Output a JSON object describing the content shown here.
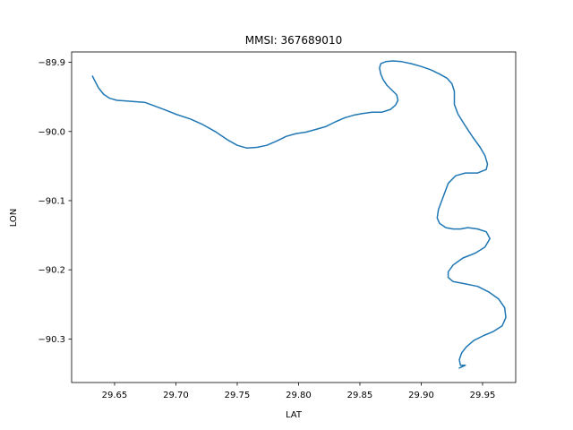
{
  "chart_data": {
    "type": "line",
    "title": "MMSI: 367689010",
    "xlabel": "LAT",
    "ylabel": "LON",
    "xlim": [
      29.615,
      29.977
    ],
    "ylim": [
      -90.363,
      -89.885
    ],
    "xticks": [
      29.65,
      29.7,
      29.75,
      29.8,
      29.85,
      29.9,
      29.95
    ],
    "xtick_labels": [
      "29.65",
      "29.70",
      "29.75",
      "29.80",
      "29.85",
      "29.90",
      "29.95"
    ],
    "yticks": [
      -89.9,
      -90.0,
      -90.1,
      -90.2,
      -90.3
    ],
    "ytick_labels": [
      "−89.9",
      "−90.0",
      "−90.1",
      "−90.2",
      "−90.3"
    ],
    "grid": false,
    "color": "#1f77b4",
    "series": [
      {
        "x": [
          29.632,
          29.634,
          29.637,
          29.641,
          29.646,
          29.652,
          29.66,
          29.675,
          29.69,
          29.7,
          29.712,
          29.722,
          29.732,
          29.742,
          29.75,
          29.758,
          29.766,
          29.774,
          29.782,
          29.79,
          29.798,
          29.806,
          29.814,
          29.822,
          29.83,
          29.838,
          29.846,
          29.852,
          29.86,
          29.868,
          29.875,
          29.879,
          29.881,
          29.88,
          29.876,
          29.872,
          29.869,
          29.867,
          29.866,
          29.867,
          29.871,
          29.877,
          29.884,
          29.892,
          29.9,
          29.908,
          29.915,
          29.921,
          29.925,
          29.927,
          29.927,
          29.93,
          29.936,
          29.942,
          29.948,
          29.952,
          29.954,
          29.953,
          29.946,
          29.936,
          29.928,
          29.922,
          29.918,
          29.914,
          29.913,
          29.915,
          29.92,
          29.926,
          29.932,
          29.938,
          29.946,
          29.953,
          29.956,
          29.952,
          29.944,
          29.934,
          29.926,
          29.922,
          29.922,
          29.926,
          29.935,
          29.946,
          29.955,
          29.963,
          29.968,
          29.969,
          29.966,
          29.959,
          29.951,
          29.943,
          29.937,
          29.933,
          29.931,
          29.932,
          29.936,
          29.931
        ],
        "y": [
          -89.92,
          -89.927,
          -89.937,
          -89.946,
          -89.952,
          -89.955,
          -89.956,
          -89.958,
          -89.968,
          -89.975,
          -89.982,
          -89.99,
          -90.0,
          -90.012,
          -90.02,
          -90.024,
          -90.023,
          -90.02,
          -90.014,
          -90.007,
          -90.003,
          -90.001,
          -89.997,
          -89.993,
          -89.986,
          -89.98,
          -89.976,
          -89.974,
          -89.972,
          -89.972,
          -89.968,
          -89.962,
          -89.955,
          -89.947,
          -89.94,
          -89.933,
          -89.925,
          -89.917,
          -89.908,
          -89.902,
          -89.899,
          -89.898,
          -89.899,
          -89.902,
          -89.906,
          -89.911,
          -89.917,
          -89.923,
          -89.931,
          -89.942,
          -89.961,
          -89.975,
          -89.992,
          -90.008,
          -90.023,
          -90.035,
          -90.047,
          -90.055,
          -90.06,
          -90.06,
          -90.064,
          -90.075,
          -90.094,
          -90.113,
          -90.125,
          -90.133,
          -90.139,
          -90.141,
          -90.141,
          -90.139,
          -90.141,
          -90.145,
          -90.155,
          -90.167,
          -90.176,
          -90.183,
          -90.193,
          -90.203,
          -90.211,
          -90.217,
          -90.22,
          -90.224,
          -90.232,
          -90.242,
          -90.255,
          -90.269,
          -90.281,
          -90.289,
          -90.295,
          -90.302,
          -90.311,
          -90.32,
          -90.33,
          -90.338,
          -90.338,
          -90.342
        ]
      }
    ]
  }
}
